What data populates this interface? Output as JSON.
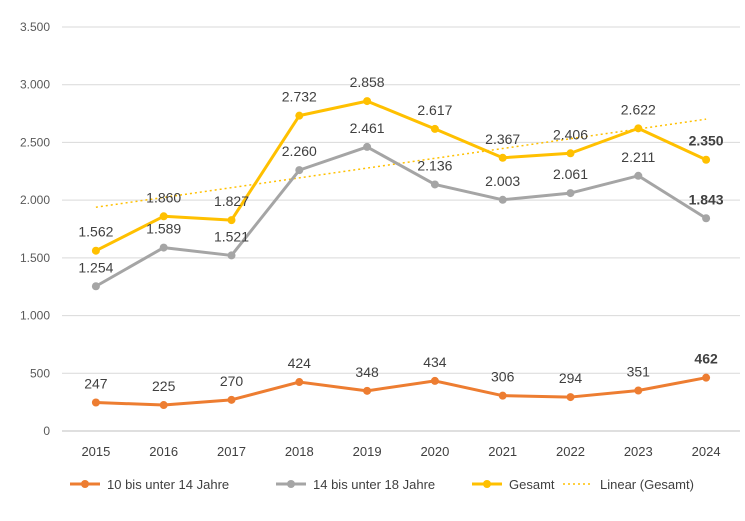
{
  "chart_data": {
    "type": "line",
    "x": [
      "2015",
      "2016",
      "2017",
      "2018",
      "2019",
      "2020",
      "2021",
      "2022",
      "2023",
      "2024"
    ],
    "ylim": [
      0,
      3500
    ],
    "yticks": [
      0,
      500,
      1000,
      1500,
      2000,
      2500,
      3000,
      3500
    ],
    "ytick_labels": [
      "0",
      "500",
      "1.000",
      "1.500",
      "2.000",
      "2.500",
      "3.000",
      "3.500"
    ],
    "grid": true,
    "legend_position": "bottom",
    "series": [
      {
        "name": "10 bis unter 14 Jahre",
        "color": "#ED7D31",
        "values": [
          247,
          225,
          270,
          424,
          348,
          434,
          306,
          294,
          351,
          462
        ],
        "labels": [
          "247",
          "225",
          "270",
          "424",
          "348",
          "434",
          "306",
          "294",
          "351",
          "462"
        ],
        "label_position": "above"
      },
      {
        "name": "14 bis unter 18 Jahre",
        "color": "#A5A5A5",
        "values": [
          1254,
          1589,
          1521,
          2260,
          2461,
          2136,
          2003,
          2061,
          2211,
          1843
        ],
        "labels": [
          "1.254",
          "1.589",
          "1.521",
          "2.260",
          "2.461",
          "2.136",
          "2.003",
          "2.061",
          "2.211",
          "1.843"
        ],
        "label_position": "above"
      },
      {
        "name": "Gesamt",
        "color": "#FFC000",
        "values": [
          1562,
          1860,
          1827,
          2732,
          2858,
          2617,
          2367,
          2406,
          2622,
          2350
        ],
        "labels": [
          "1.562",
          "1.860",
          "1.827",
          "2.732",
          "2.858",
          "2.617",
          "2.367",
          "2.406",
          "2.622",
          "2.350"
        ],
        "label_position": "above"
      }
    ],
    "trendline": {
      "name": "Linear (Gesamt)",
      "color": "#FFC000",
      "of_series": "Gesamt",
      "style": "dotted"
    }
  }
}
